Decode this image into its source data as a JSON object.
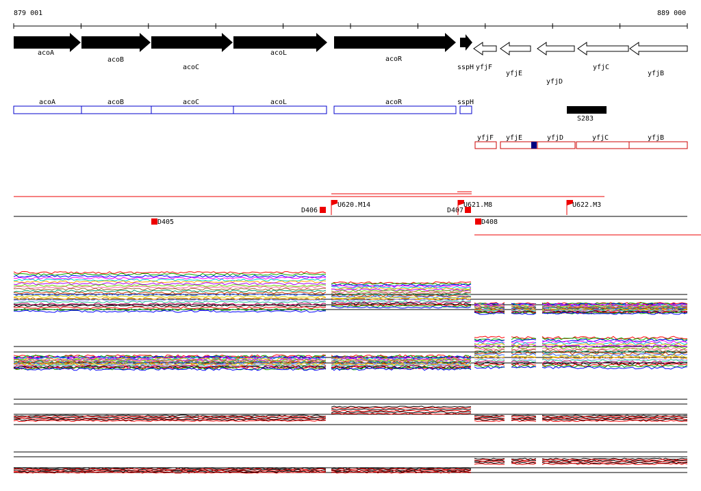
{
  "browser": {
    "coordinates": {
      "start": "879 001",
      "end": "889 000"
    },
    "genes_forward": [
      "acoA",
      "acoB",
      "acoC",
      "acoL",
      "acoR",
      "sspH"
    ],
    "genes_reverse": [
      "yfjF",
      "yfjE",
      "yfjD",
      "yfjC",
      "yfjB"
    ],
    "cds_forward": [
      "acoA",
      "acoB",
      "acoC",
      "acoL",
      "acoR",
      "sspH"
    ],
    "cds_reverse": [
      "yfjF",
      "yfjE",
      "yfjD",
      "yfjC",
      "yfjB"
    ],
    "feature": {
      "label": "S283"
    },
    "markers_top": [
      "D406",
      "U620.M14",
      "D407",
      "U621.M8",
      "U622.M3"
    ],
    "markers_bottom": [
      "D405",
      "D408"
    ]
  },
  "colors": {
    "gene_fill": "#000000",
    "cds_blue": "#0000cc",
    "cds_red": "#cc0000",
    "marker_red": "#ee0000",
    "highlight_block": "#000080"
  },
  "tracks": {
    "expression_panels": 4,
    "panel_colors": [
      "multicolor",
      "multicolor",
      "black-red",
      "black-red"
    ]
  }
}
